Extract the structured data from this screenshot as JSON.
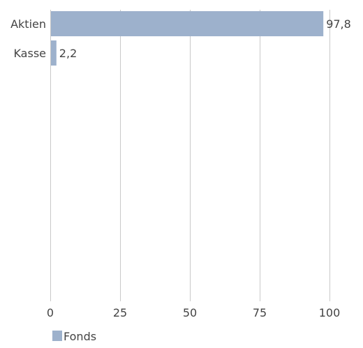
{
  "chart_data": {
    "type": "bar",
    "orientation": "horizontal",
    "categories": [
      "Aktien",
      "Kasse"
    ],
    "series": [
      {
        "name": "Fonds",
        "values": [
          97.8,
          2.2
        ],
        "value_labels": [
          "97,8",
          "2,2"
        ],
        "color": "#9db1cc"
      }
    ],
    "xlim": [
      0,
      100
    ],
    "xticks": [
      0,
      25,
      50,
      75,
      100
    ],
    "xtick_labels": [
      "0",
      "25",
      "50",
      "75",
      "100"
    ],
    "grid": "vertical",
    "legend_position": "bottom-left"
  }
}
